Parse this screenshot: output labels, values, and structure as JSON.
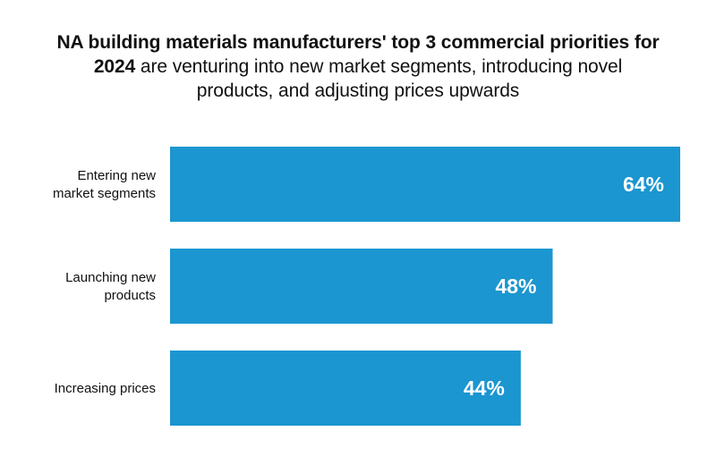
{
  "chart_data": {
    "type": "bar",
    "orientation": "horizontal",
    "title_bold": "NA building materials manufacturers' top 3 commercial priorities for 2024",
    "title_regular": "are venturing into new market segments, introducing novel products, and adjusting prices upwards",
    "categories": [
      [
        "Entering new",
        "market segments"
      ],
      [
        "Launching new",
        "products"
      ],
      [
        "Increasing prices"
      ]
    ],
    "values": [
      64,
      48,
      44
    ],
    "value_labels": [
      "64%",
      "48%",
      "44%"
    ],
    "unit": "%",
    "xlim": [
      0,
      64
    ],
    "grid": false,
    "legend": "none",
    "bar_color": "#1b96d0",
    "value_label_color": "#ffffff"
  }
}
